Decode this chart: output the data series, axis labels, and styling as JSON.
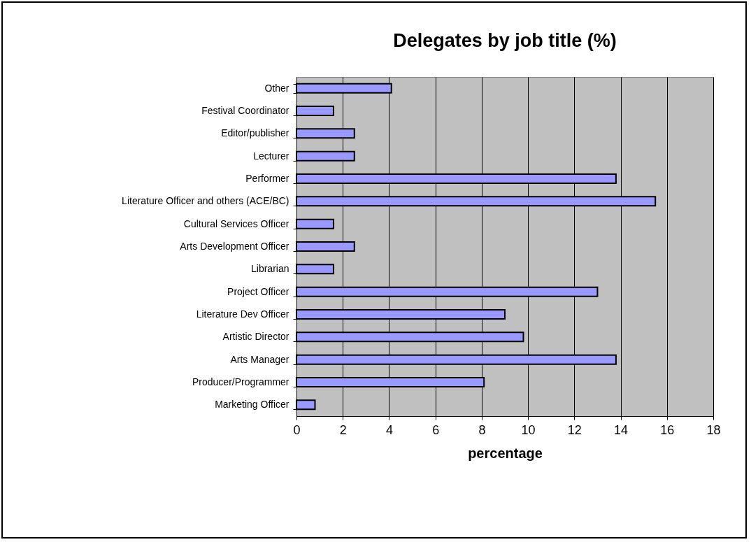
{
  "chart_data": {
    "type": "bar",
    "orientation": "horizontal",
    "title": "Delegates by job title (%)",
    "xlabel": "percentage",
    "categories": [
      "Other",
      "Festival Coordinator",
      "Editor/publisher",
      "Lecturer",
      "Performer",
      "Literature Officer and others (ACE/BC)",
      "Cultural Services Officer",
      "Arts Development Officer",
      "Librarian",
      "Project Officer",
      "Literature Dev Officer",
      "Artistic Director",
      "Arts Manager",
      "Producer/Programmer",
      "Marketing Officer"
    ],
    "values": [
      4.1,
      1.6,
      2.5,
      2.5,
      13.8,
      15.5,
      1.6,
      2.5,
      1.6,
      13.0,
      9.0,
      9.8,
      13.8,
      8.1,
      0.8
    ],
    "color": "#9999ff",
    "xlim": [
      0,
      18
    ],
    "xticks": [
      0,
      2,
      4,
      6,
      8,
      10,
      12,
      14,
      16,
      18
    ],
    "grid": "x"
  }
}
